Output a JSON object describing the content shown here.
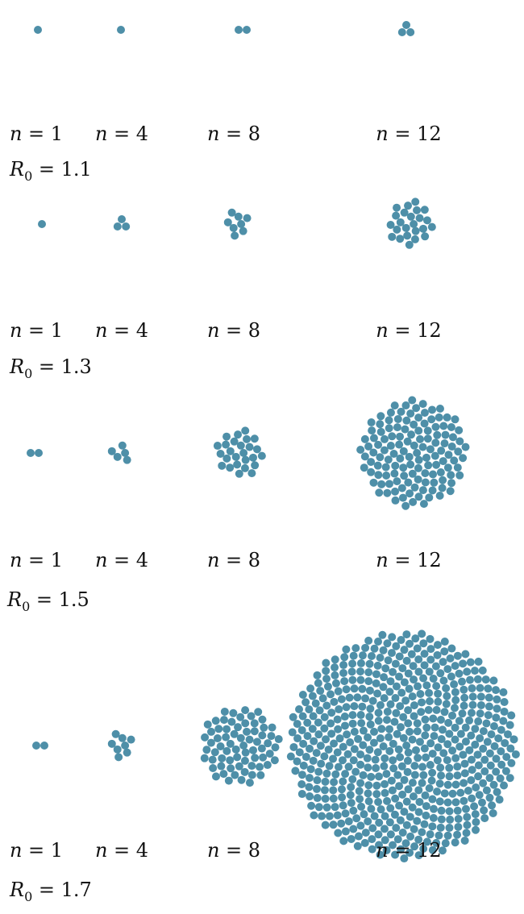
{
  "dot_color": "#4e8fa8",
  "symbol_n": "n",
  "symbol_r": "R",
  "symbol_r_sub": "0",
  "rows": [
    {
      "r0_value": "1.1",
      "columns": [
        {
          "label": "1",
          "count": 1
        },
        {
          "label": "4",
          "count": 1
        },
        {
          "label": "8",
          "count": 2
        },
        {
          "label": "12",
          "count": 3
        }
      ]
    },
    {
      "r0_value": "1.3",
      "columns": [
        {
          "label": "1",
          "count": 1
        },
        {
          "label": "4",
          "count": 3
        },
        {
          "label": "8",
          "count": 8
        },
        {
          "label": "12",
          "count": 24
        }
      ]
    },
    {
      "r0_value": "1.5",
      "columns": [
        {
          "label": "1",
          "count": 2
        },
        {
          "label": "4",
          "count": 5
        },
        {
          "label": "8",
          "count": 26
        },
        {
          "label": "12",
          "count": 130
        }
      ]
    },
    {
      "r0_value": "1.7",
      "columns": [
        {
          "label": "1",
          "count": 2
        },
        {
          "label": "4",
          "count": 8
        },
        {
          "label": "8",
          "count": 70
        },
        {
          "label": "12",
          "count": 582
        }
      ]
    }
  ]
}
